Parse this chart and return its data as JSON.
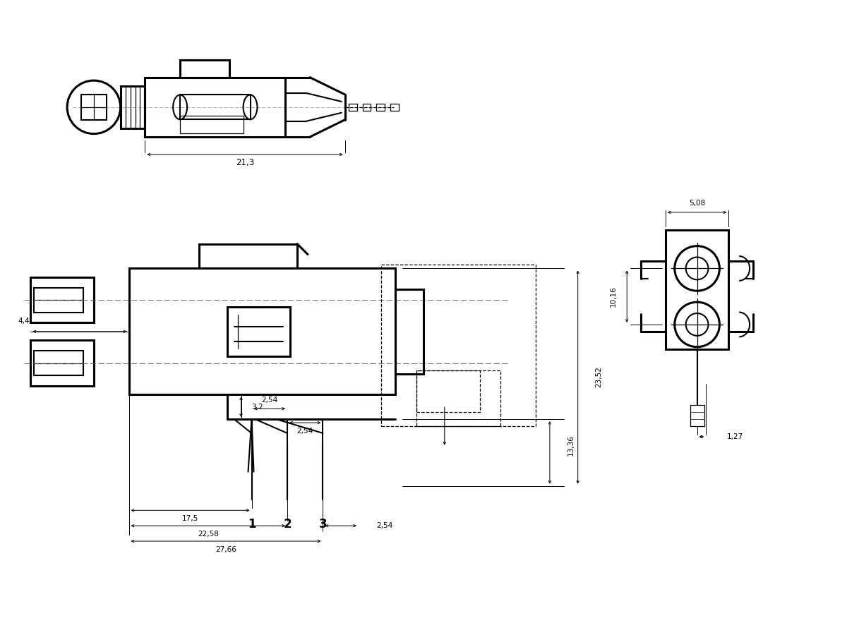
{
  "bg_color": "#ffffff",
  "line_color": "#000000",
  "dims": {
    "d213": "21,3",
    "d32": "3,2",
    "d44": "4,4",
    "d175": "17,5",
    "d2258": "22,58",
    "d2766": "27,66",
    "d254a": "2,54",
    "d254b": "2,54",
    "d254c": "2,54",
    "d1336": "13,36",
    "d2352": "23,52",
    "d508": "5,08",
    "d1016": "10,16",
    "d127": "1,27"
  },
  "labels": [
    "1",
    "2",
    "3"
  ]
}
